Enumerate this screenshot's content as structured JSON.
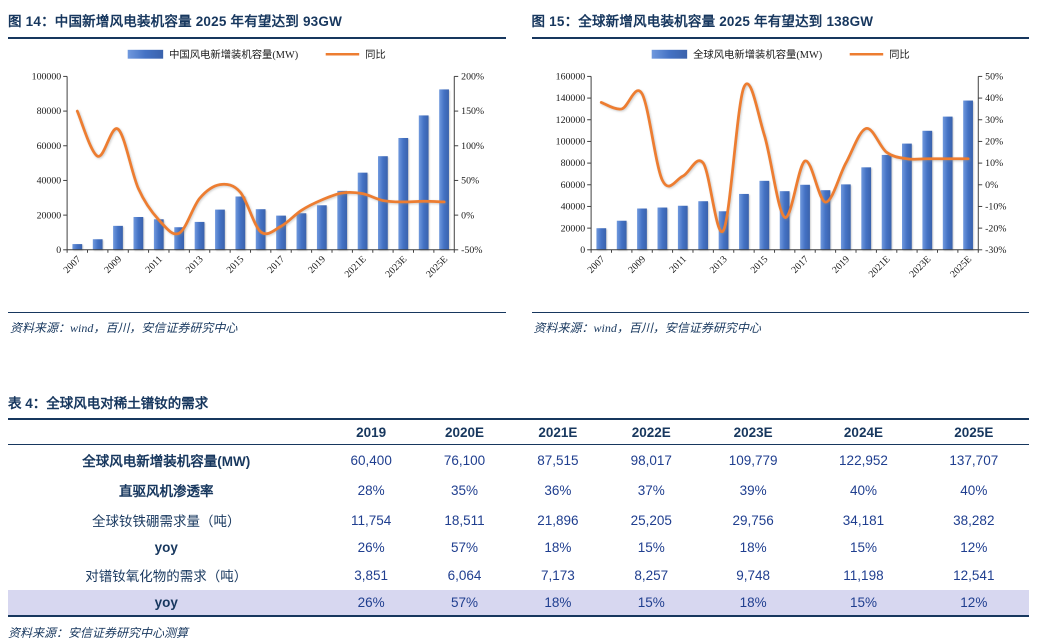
{
  "theme": {
    "navy": "#17375E",
    "table_value_blue": "#1F3E8F",
    "bar_blue": "#4472C4",
    "line_orange": "#ED7D31",
    "highlight_row_bg": "#D7D7F0"
  },
  "figures": [
    {
      "title": "图 14：中国新增风电装机容量 2025 年有望达到 93GW",
      "source": "资料来源：wind，百川，安信证券研究中心"
    },
    {
      "title": "图 15：全球新增风电装机容量 2025 年有望达到 138GW",
      "source": "资料来源：wind，百川，安信证券研究中心"
    }
  ],
  "chart_data": [
    {
      "type": "bar",
      "title": "图 14：中国新增风电装机容量 2025 年有望达到 93GW",
      "categories": [
        "2007",
        "2008",
        "2009",
        "2010",
        "2011",
        "2012",
        "2013",
        "2014",
        "2015",
        "2016",
        "2017",
        "2018",
        "2019",
        "2020",
        "2021E",
        "2022E",
        "2023E",
        "2024E",
        "2025E"
      ],
      "series": [
        {
          "name": "中国风电新增装机容量(MW)",
          "type": "bar",
          "axis": "left",
          "values": [
            3300,
            6100,
            13800,
            18900,
            17600,
            13000,
            16100,
            23200,
            30750,
            23400,
            19700,
            21100,
            25700,
            34000,
            44500,
            54000,
            64500,
            77500,
            92500
          ]
        },
        {
          "name": "同比",
          "type": "line",
          "axis": "right",
          "values": [
            150,
            85,
            124,
            38,
            -7,
            -26,
            24,
            44,
            33,
            -24,
            -16,
            7,
            22,
            32,
            31,
            21,
            19,
            20,
            19
          ]
        }
      ],
      "left_axis": {
        "min": 0,
        "max": 100000,
        "step": 20000
      },
      "right_axis": {
        "min": -50,
        "max": 200,
        "step": 50,
        "suffix": "%"
      },
      "tick_every": 2,
      "grid": false,
      "legend_position": "top"
    },
    {
      "type": "bar",
      "title": "图 15：全球新增风电装机容量 2025 年有望达到 138GW",
      "categories": [
        "2007",
        "2008",
        "2009",
        "2010",
        "2011",
        "2012",
        "2013",
        "2014",
        "2015",
        "2016",
        "2017",
        "2018",
        "2019",
        "2020E",
        "2021E",
        "2022E",
        "2023E",
        "2024E",
        "2025E"
      ],
      "series": [
        {
          "name": "全球风电新增装机容量(MW)",
          "type": "bar",
          "axis": "left",
          "values": [
            19900,
            26800,
            38100,
            39000,
            40600,
            44800,
            35500,
            51500,
            63600,
            54100,
            60000,
            55000,
            60400,
            76100,
            87515,
            98017,
            109779,
            122952,
            137707
          ]
        },
        {
          "name": "同比",
          "type": "line",
          "axis": "right",
          "values": [
            38,
            35,
            42,
            2,
            4,
            10,
            -21,
            45,
            23,
            -15,
            11,
            -8,
            10,
            26,
            15,
            12,
            12,
            12,
            12
          ]
        }
      ],
      "left_axis": {
        "min": 0,
        "max": 160000,
        "step": 20000
      },
      "right_axis": {
        "min": -30,
        "max": 50,
        "step": 10,
        "suffix": "%"
      },
      "tick_every": 2,
      "grid": false,
      "legend_position": "top"
    }
  ],
  "table": {
    "title": "表 4：全球风电对稀土镨钕的需求",
    "columns": [
      "2019",
      "2020E",
      "2021E",
      "2022E",
      "2023E",
      "2024E",
      "2025E"
    ],
    "rows": [
      {
        "label": "全球风电新增装机容量(MW)",
        "bold": true,
        "highlight": false,
        "values": [
          "60,400",
          "76,100",
          "87,515",
          "98,017",
          "109,779",
          "122,952",
          "137,707"
        ]
      },
      {
        "label": "直驱风机渗透率",
        "bold": true,
        "highlight": false,
        "values": [
          "28%",
          "35%",
          "36%",
          "37%",
          "39%",
          "40%",
          "40%"
        ]
      },
      {
        "label": "全球钕铁硼需求量（吨）",
        "bold": false,
        "highlight": false,
        "values": [
          "11,754",
          "18,511",
          "21,896",
          "25,205",
          "29,756",
          "34,181",
          "38,282"
        ]
      },
      {
        "label": "yoy",
        "bold": true,
        "highlight": false,
        "values": [
          "26%",
          "57%",
          "18%",
          "15%",
          "18%",
          "15%",
          "12%"
        ]
      },
      {
        "label": "对镨钕氧化物的需求（吨）",
        "bold": false,
        "highlight": false,
        "values": [
          "3,851",
          "6,064",
          "7,173",
          "8,257",
          "9,748",
          "11,198",
          "12,541"
        ]
      },
      {
        "label": "yoy",
        "bold": true,
        "highlight": true,
        "values": [
          "26%",
          "57%",
          "18%",
          "15%",
          "18%",
          "15%",
          "12%"
        ]
      }
    ],
    "source": "资料来源：安信证券研究中心测算"
  }
}
